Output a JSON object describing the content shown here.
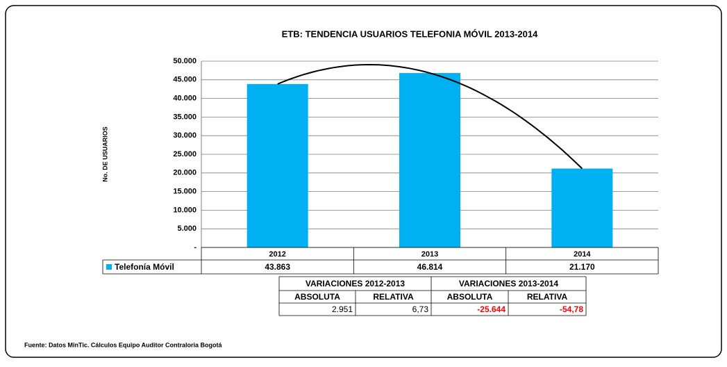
{
  "chart_data": {
    "type": "bar",
    "title": "ETB: TENDENCIA USUARIOS TELEFONIA MÓVIL 2013-2014",
    "y_label": "No. DE USUARIOS",
    "categories": [
      "2012",
      "2013",
      "2014"
    ],
    "series": [
      {
        "name": "Telefonía Móvil",
        "color": "#00b0f0",
        "values": [
          43863,
          46814,
          21170
        ],
        "value_labels": [
          "43.863",
          "46.814",
          "21.170"
        ]
      }
    ],
    "ylim": [
      0,
      50000
    ],
    "yticks": [
      {
        "value": 0,
        "label": "-"
      },
      {
        "value": 5000,
        "label": "5.000"
      },
      {
        "value": 10000,
        "label": "10.000"
      },
      {
        "value": 15000,
        "label": "15.000"
      },
      {
        "value": 20000,
        "label": "20.000"
      },
      {
        "value": 25000,
        "label": "25.000"
      },
      {
        "value": 30000,
        "label": "30.000"
      },
      {
        "value": 35000,
        "label": "35.000"
      },
      {
        "value": 40000,
        "label": "40.000"
      },
      {
        "value": 45000,
        "label": "45.000"
      },
      {
        "value": 50000,
        "label": "50.000"
      }
    ],
    "grid": true,
    "trendline": {
      "type": "polynomial",
      "color": "#000000"
    }
  },
  "variations": {
    "headers": [
      "VARIACIONES 2012-2013",
      "VARIACIONES 2013-2014"
    ],
    "subheaders": [
      "ABSOLUTA",
      "RELATIVA",
      "ABSOLUTA",
      "RELATIVA"
    ],
    "values": [
      2951,
      6.73,
      -25644,
      -54.78
    ],
    "value_labels": [
      "2.951",
      "6,73",
      "-25.644",
      "-54,78"
    ],
    "negative_color": "#ff0000"
  },
  "source": "Fuente: Datos MinTic. Cálculos Equipo Auditor Contraloria Bogotá"
}
